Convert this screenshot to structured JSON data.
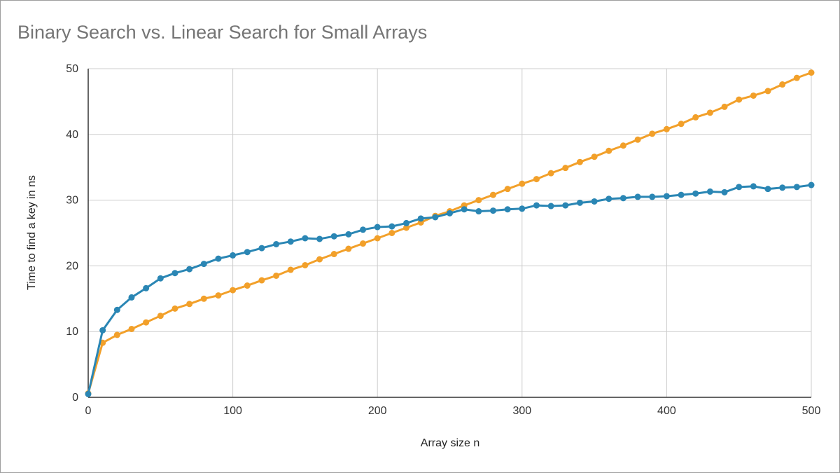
{
  "chart_data": {
    "type": "line",
    "title": "Binary Search vs. Linear Search for Small Arrays",
    "xlabel": "Array size n",
    "ylabel": "Time to find a key in ns",
    "xlim": [
      0,
      500
    ],
    "ylim": [
      0,
      50
    ],
    "xticks": [
      0,
      100,
      200,
      300,
      400,
      500
    ],
    "yticks": [
      0,
      10,
      20,
      30,
      40,
      50
    ],
    "grid": true,
    "legend": "none",
    "x": [
      0,
      10,
      20,
      30,
      40,
      50,
      60,
      70,
      80,
      90,
      100,
      110,
      120,
      130,
      140,
      150,
      160,
      170,
      180,
      190,
      200,
      210,
      220,
      230,
      240,
      250,
      260,
      270,
      280,
      290,
      300,
      310,
      320,
      330,
      340,
      350,
      360,
      370,
      380,
      390,
      400,
      410,
      420,
      430,
      440,
      450,
      460,
      470,
      480,
      490,
      500
    ],
    "series": [
      {
        "color": "#2a86b4",
        "values": [
          0.5,
          10.2,
          13.3,
          15.2,
          16.6,
          18.1,
          18.9,
          19.5,
          20.3,
          21.1,
          21.6,
          22.1,
          22.7,
          23.3,
          23.7,
          24.2,
          24.1,
          24.5,
          24.8,
          25.5,
          25.9,
          26.0,
          26.5,
          27.2,
          27.4,
          28.0,
          28.6,
          28.3,
          28.4,
          28.6,
          28.7,
          29.2,
          29.1,
          29.2,
          29.6,
          29.8,
          30.2,
          30.3,
          30.5,
          30.5,
          30.6,
          30.8,
          31.0,
          31.3,
          31.2,
          32.0,
          32.1,
          31.7,
          31.9,
          32.0,
          32.3
        ]
      },
      {
        "color": "#f2a02a",
        "values": [
          0.6,
          8.3,
          9.5,
          10.4,
          11.4,
          12.4,
          13.5,
          14.2,
          15.0,
          15.5,
          16.3,
          17.0,
          17.8,
          18.5,
          19.4,
          20.1,
          21.0,
          21.8,
          22.6,
          23.4,
          24.2,
          25.0,
          25.8,
          26.6,
          27.6,
          28.3,
          29.2,
          30.0,
          30.8,
          31.7,
          32.5,
          33.2,
          34.1,
          34.9,
          35.8,
          36.6,
          37.5,
          38.3,
          39.2,
          40.1,
          40.8,
          41.6,
          42.6,
          43.3,
          44.2,
          45.3,
          45.9,
          46.6,
          47.6,
          48.6,
          49.4
        ]
      }
    ]
  }
}
